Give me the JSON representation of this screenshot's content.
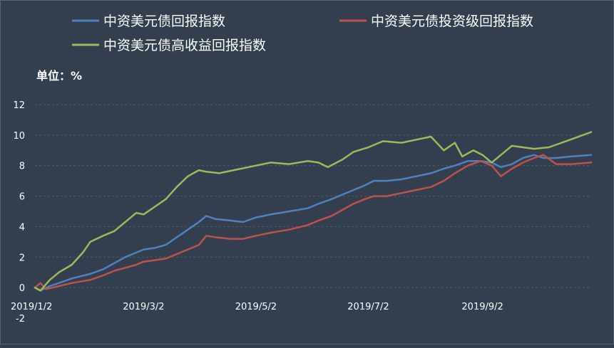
{
  "chart_data": {
    "type": "line",
    "unit_label": "单位：%",
    "legend_position": "top",
    "grid": "horizontal-dashed",
    "ylim": [
      -2,
      12
    ],
    "yticks": [
      12,
      10,
      8,
      6,
      4,
      2,
      0,
      -2
    ],
    "xlim": [
      "2019-01-02",
      "2019-10-31"
    ],
    "xticks": [
      {
        "date": "2019-01-02",
        "label": "2019/1/2"
      },
      {
        "date": "2019-03-02",
        "label": "2019/3/2"
      },
      {
        "date": "2019-05-02",
        "label": "2019/5/2"
      },
      {
        "date": "2019-07-02",
        "label": "2019/7/2"
      },
      {
        "date": "2019-09-02",
        "label": "2019/9/2"
      }
    ],
    "series": [
      {
        "name": "中资美元债回报指数",
        "color": "#4f81bd",
        "points": [
          [
            "2019-01-02",
            0.0
          ],
          [
            "2019-01-05",
            -0.2
          ],
          [
            "2019-01-10",
            0.1
          ],
          [
            "2019-01-15",
            0.3
          ],
          [
            "2019-01-22",
            0.6
          ],
          [
            "2019-02-01",
            0.9
          ],
          [
            "2019-02-08",
            1.2
          ],
          [
            "2019-02-14",
            1.6
          ],
          [
            "2019-02-20",
            2.0
          ],
          [
            "2019-02-26",
            2.3
          ],
          [
            "2019-03-02",
            2.5
          ],
          [
            "2019-03-08",
            2.6
          ],
          [
            "2019-03-14",
            2.8
          ],
          [
            "2019-03-20",
            3.3
          ],
          [
            "2019-03-26",
            3.8
          ],
          [
            "2019-04-01",
            4.3
          ],
          [
            "2019-04-05",
            4.7
          ],
          [
            "2019-04-10",
            4.5
          ],
          [
            "2019-04-18",
            4.4
          ],
          [
            "2019-04-25",
            4.3
          ],
          [
            "2019-05-02",
            4.6
          ],
          [
            "2019-05-10",
            4.8
          ],
          [
            "2019-05-20",
            5.0
          ],
          [
            "2019-05-30",
            5.2
          ],
          [
            "2019-06-05",
            5.5
          ],
          [
            "2019-06-12",
            5.8
          ],
          [
            "2019-06-18",
            6.1
          ],
          [
            "2019-06-24",
            6.4
          ],
          [
            "2019-06-30",
            6.7
          ],
          [
            "2019-07-05",
            7.0
          ],
          [
            "2019-07-12",
            7.0
          ],
          [
            "2019-07-20",
            7.1
          ],
          [
            "2019-07-28",
            7.3
          ],
          [
            "2019-08-05",
            7.5
          ],
          [
            "2019-08-12",
            7.8
          ],
          [
            "2019-08-18",
            8.0
          ],
          [
            "2019-08-25",
            8.3
          ],
          [
            "2019-09-01",
            8.3
          ],
          [
            "2019-09-07",
            8.2
          ],
          [
            "2019-09-12",
            7.9
          ],
          [
            "2019-09-18",
            8.1
          ],
          [
            "2019-09-24",
            8.5
          ],
          [
            "2019-09-30",
            8.7
          ],
          [
            "2019-10-05",
            8.5
          ],
          [
            "2019-10-12",
            8.5
          ],
          [
            "2019-10-20",
            8.6
          ],
          [
            "2019-10-31",
            8.7
          ]
        ]
      },
      {
        "name": "中资美元债投资级回报指数",
        "color": "#c0504d",
        "points": [
          [
            "2019-01-02",
            0.0
          ],
          [
            "2019-01-05",
            0.3
          ],
          [
            "2019-01-08",
            -0.1
          ],
          [
            "2019-01-15",
            0.1
          ],
          [
            "2019-01-22",
            0.3
          ],
          [
            "2019-02-01",
            0.5
          ],
          [
            "2019-02-08",
            0.8
          ],
          [
            "2019-02-14",
            1.1
          ],
          [
            "2019-02-20",
            1.3
          ],
          [
            "2019-02-26",
            1.5
          ],
          [
            "2019-03-02",
            1.7
          ],
          [
            "2019-03-08",
            1.8
          ],
          [
            "2019-03-14",
            1.9
          ],
          [
            "2019-03-20",
            2.2
          ],
          [
            "2019-03-26",
            2.5
          ],
          [
            "2019-04-01",
            2.8
          ],
          [
            "2019-04-05",
            3.4
          ],
          [
            "2019-04-10",
            3.3
          ],
          [
            "2019-04-18",
            3.2
          ],
          [
            "2019-04-25",
            3.2
          ],
          [
            "2019-05-02",
            3.4
          ],
          [
            "2019-05-10",
            3.6
          ],
          [
            "2019-05-20",
            3.8
          ],
          [
            "2019-05-30",
            4.1
          ],
          [
            "2019-06-05",
            4.4
          ],
          [
            "2019-06-12",
            4.7
          ],
          [
            "2019-06-18",
            5.1
          ],
          [
            "2019-06-24",
            5.5
          ],
          [
            "2019-06-30",
            5.8
          ],
          [
            "2019-07-05",
            6.0
          ],
          [
            "2019-07-12",
            6.0
          ],
          [
            "2019-07-20",
            6.2
          ],
          [
            "2019-07-28",
            6.4
          ],
          [
            "2019-08-05",
            6.6
          ],
          [
            "2019-08-12",
            7.0
          ],
          [
            "2019-08-18",
            7.5
          ],
          [
            "2019-08-25",
            8.0
          ],
          [
            "2019-09-01",
            8.3
          ],
          [
            "2019-09-07",
            8.0
          ],
          [
            "2019-09-12",
            7.3
          ],
          [
            "2019-09-18",
            7.8
          ],
          [
            "2019-09-24",
            8.2
          ],
          [
            "2019-09-30",
            8.5
          ],
          [
            "2019-10-05",
            8.7
          ],
          [
            "2019-10-12",
            8.1
          ],
          [
            "2019-10-20",
            8.1
          ],
          [
            "2019-10-31",
            8.2
          ]
        ]
      },
      {
        "name": "中资美元债高收益回报指数",
        "color": "#9bbb59",
        "points": [
          [
            "2019-01-02",
            0.0
          ],
          [
            "2019-01-05",
            -0.2
          ],
          [
            "2019-01-10",
            0.5
          ],
          [
            "2019-01-15",
            1.0
          ],
          [
            "2019-01-22",
            1.5
          ],
          [
            "2019-01-28",
            2.3
          ],
          [
            "2019-02-01",
            3.0
          ],
          [
            "2019-02-08",
            3.4
          ],
          [
            "2019-02-14",
            3.7
          ],
          [
            "2019-02-20",
            4.3
          ],
          [
            "2019-02-26",
            4.9
          ],
          [
            "2019-03-02",
            4.8
          ],
          [
            "2019-03-08",
            5.3
          ],
          [
            "2019-03-14",
            5.8
          ],
          [
            "2019-03-20",
            6.6
          ],
          [
            "2019-03-26",
            7.3
          ],
          [
            "2019-04-01",
            7.7
          ],
          [
            "2019-04-05",
            7.6
          ],
          [
            "2019-04-12",
            7.5
          ],
          [
            "2019-04-20",
            7.7
          ],
          [
            "2019-05-02",
            8.0
          ],
          [
            "2019-05-10",
            8.2
          ],
          [
            "2019-05-20",
            8.1
          ],
          [
            "2019-05-30",
            8.3
          ],
          [
            "2019-06-05",
            8.2
          ],
          [
            "2019-06-10",
            7.9
          ],
          [
            "2019-06-18",
            8.4
          ],
          [
            "2019-06-24",
            8.9
          ],
          [
            "2019-07-02",
            9.2
          ],
          [
            "2019-07-10",
            9.6
          ],
          [
            "2019-07-20",
            9.5
          ],
          [
            "2019-07-28",
            9.7
          ],
          [
            "2019-08-05",
            9.9
          ],
          [
            "2019-08-12",
            9.0
          ],
          [
            "2019-08-18",
            9.5
          ],
          [
            "2019-08-22",
            8.6
          ],
          [
            "2019-08-28",
            9.0
          ],
          [
            "2019-09-02",
            8.7
          ],
          [
            "2019-09-07",
            8.2
          ],
          [
            "2019-09-12",
            8.7
          ],
          [
            "2019-09-18",
            9.3
          ],
          [
            "2019-09-24",
            9.2
          ],
          [
            "2019-09-30",
            9.1
          ],
          [
            "2019-10-08",
            9.2
          ],
          [
            "2019-10-15",
            9.5
          ],
          [
            "2019-10-22",
            9.8
          ],
          [
            "2019-10-31",
            10.2
          ]
        ]
      }
    ]
  }
}
